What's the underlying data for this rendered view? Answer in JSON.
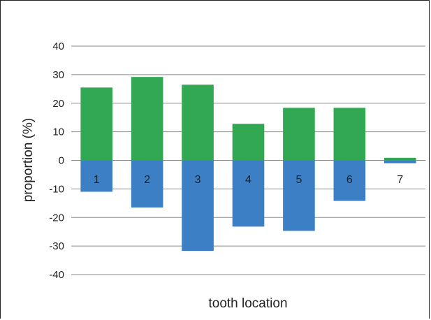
{
  "chart_data": {
    "type": "bar",
    "stacked": true,
    "categories": [
      "1",
      "2",
      "3",
      "4",
      "5",
      "6",
      "7"
    ],
    "series": [
      {
        "color": "#33a853",
        "values": [
          25.5,
          29.2,
          26.5,
          12.8,
          18.4,
          18.4,
          0.9
        ]
      },
      {
        "color": "#3c7fc4",
        "values": [
          -11,
          -16.5,
          -31.7,
          -23.2,
          -24.7,
          -14.2,
          -1.0
        ]
      }
    ],
    "xlabel": "tooth location",
    "ylabel": "proportion (%)",
    "ylim": [
      -40,
      40
    ],
    "yticks": [
      40,
      30,
      20,
      10,
      0,
      -10,
      -20,
      -30,
      -40
    ],
    "grid": true
  }
}
